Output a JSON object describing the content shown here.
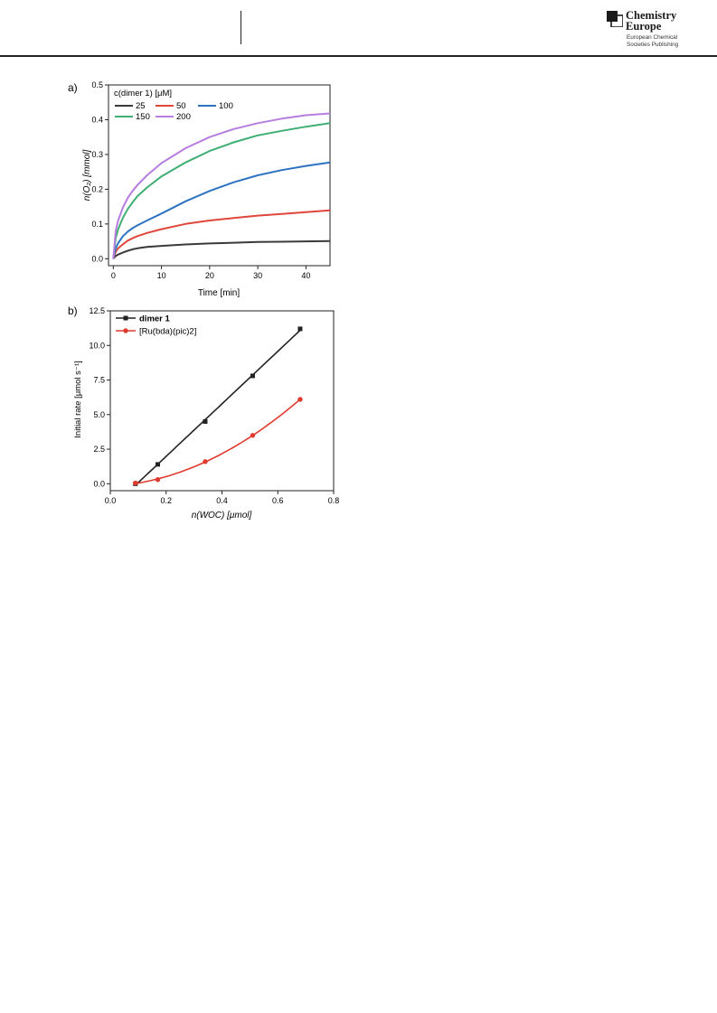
{
  "header": {
    "publisher_line1": "Chemistry",
    "publisher_line2": "Europe",
    "publisher_sub1": "European Chemical",
    "publisher_sub2": "Societies Publishing"
  },
  "chart_data": [
    {
      "panel_label": "a)",
      "type": "line",
      "xlabel": "Time [min]",
      "ylabel": "n(O₂) [mmol]",
      "xlim": [
        -1,
        45
      ],
      "ylim": [
        -0.02,
        0.5
      ],
      "x_ticks": [
        0,
        10,
        20,
        30,
        40
      ],
      "y_ticks": [
        0.0,
        0.1,
        0.2,
        0.3,
        0.4,
        0.5
      ],
      "legend_title": "c(dimer 1) [μM]",
      "legend_placement": "top-left",
      "grid": false,
      "x": [
        0,
        0.5,
        1,
        2,
        3,
        4,
        5,
        7,
        10,
        15,
        20,
        25,
        30,
        35,
        40,
        45
      ],
      "series": [
        {
          "name": "25",
          "color": "#3a3a3a",
          "values": [
            0.0,
            0.008,
            0.012,
            0.018,
            0.023,
            0.027,
            0.03,
            0.034,
            0.037,
            0.041,
            0.044,
            0.046,
            0.048,
            0.049,
            0.05,
            0.051
          ]
        },
        {
          "name": "50",
          "color": "#e0463c",
          "values": [
            0.0,
            0.02,
            0.03,
            0.042,
            0.052,
            0.059,
            0.065,
            0.074,
            0.085,
            0.1,
            0.11,
            0.117,
            0.124,
            0.129,
            0.134,
            0.139
          ]
        },
        {
          "name": "100",
          "color": "#2e73c2",
          "values": [
            0.0,
            0.03,
            0.045,
            0.065,
            0.078,
            0.088,
            0.096,
            0.11,
            0.13,
            0.165,
            0.195,
            0.22,
            0.24,
            0.255,
            0.267,
            0.277
          ]
        },
        {
          "name": "150",
          "color": "#3fae73",
          "values": [
            0.0,
            0.06,
            0.085,
            0.118,
            0.143,
            0.162,
            0.18,
            0.205,
            0.237,
            0.277,
            0.31,
            0.335,
            0.355,
            0.368,
            0.38,
            0.39
          ]
        },
        {
          "name": "200",
          "color": "#b77ee0",
          "values": [
            0.0,
            0.08,
            0.11,
            0.148,
            0.175,
            0.195,
            0.212,
            0.24,
            0.275,
            0.318,
            0.35,
            0.373,
            0.39,
            0.403,
            0.413,
            0.418
          ]
        }
      ]
    },
    {
      "panel_label": "b)",
      "type": "scatter",
      "xlabel": "n(WOC) [μmol]",
      "ylabel": "Initial rate [μmol s⁻¹]",
      "xlim": [
        0.0,
        0.8
      ],
      "ylim": [
        -0.5,
        12.5
      ],
      "x_ticks": [
        0.0,
        0.2,
        0.4,
        0.6,
        0.8
      ],
      "y_ticks": [
        0.0,
        2.5,
        5.0,
        7.5,
        10.0,
        12.5
      ],
      "legend_placement": "top-left",
      "grid": false,
      "series": [
        {
          "name": "dimer 1",
          "color": "#222222",
          "marker": "square",
          "fit": "linear",
          "x": [
            0.09,
            0.17,
            0.34,
            0.51,
            0.68
          ],
          "values": [
            0.0,
            1.4,
            4.5,
            7.8,
            11.2
          ]
        },
        {
          "name": "[Ru(bda)(pic)2]",
          "color": "#e03a2e",
          "marker": "circle",
          "fit": "quadratic",
          "x": [
            0.09,
            0.17,
            0.34,
            0.51,
            0.68
          ],
          "values": [
            0.05,
            0.3,
            1.6,
            3.5,
            6.1
          ]
        }
      ]
    }
  ]
}
